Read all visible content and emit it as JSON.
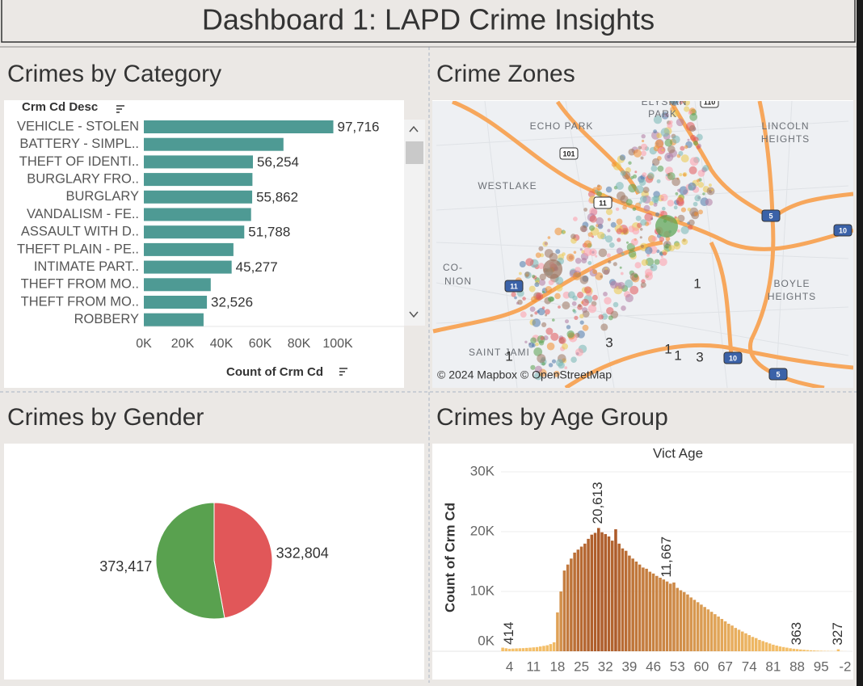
{
  "header": {
    "title": "Dashboard 1: LAPD Crime Insights"
  },
  "map": {
    "title": "Crime Zones",
    "place_labels": [
      "ELYSIAN",
      "PARK",
      "ECHO PARK",
      "WESTLAKE",
      "LINCOLN",
      "HEIGHTS",
      "BOYLE",
      "HEIGHTS",
      "SAINT JAMI",
      "CO-",
      "NION"
    ],
    "route_shields": [
      "101",
      "5",
      "10",
      "10",
      "5",
      "110",
      "11",
      "11"
    ],
    "cluster_counts": [
      1,
      3,
      1,
      1,
      3,
      1
    ],
    "attribution": "© 2024 Mapbox © OpenStreetMap"
  },
  "chart_data": [
    {
      "type": "hbar",
      "title": "Crimes by Category",
      "category_label": "Crm Cd Desc",
      "xlabel": "Count of Crm Cd",
      "categories": [
        "VEHICLE - STOLEN",
        "BATTERY - SIMPL..",
        "THEFT OF IDENTI..",
        "BURGLARY FRO..",
        "BURGLARY",
        "VANDALISM - FE..",
        "ASSAULT WITH D..",
        "THEFT PLAIN - PE..",
        "INTIMATE PART..",
        "THEFT FROM MO..",
        "THEFT FROM MO..",
        "ROBBERY"
      ],
      "values": [
        97716,
        72000,
        56254,
        56000,
        55862,
        55300,
        51788,
        46200,
        45277,
        34500,
        32526,
        30800
      ],
      "value_labels": [
        "97,716",
        null,
        "56,254",
        null,
        "55,862",
        null,
        "51,788",
        null,
        "45,277",
        null,
        "32,526",
        null
      ],
      "color": "#4e9a94",
      "xlim": [
        0,
        100000
      ],
      "xticks": [
        {
          "value": 0,
          "label": "0K"
        },
        {
          "value": 20000,
          "label": "20K"
        },
        {
          "value": 40000,
          "label": "40K"
        },
        {
          "value": 60000,
          "label": "60K"
        },
        {
          "value": 80000,
          "label": "80K"
        },
        {
          "value": 100000,
          "label": "100K"
        }
      ]
    },
    {
      "type": "pie",
      "title": "Crimes by Gender",
      "values": [
        332804,
        373417
      ],
      "value_labels": [
        "332,804",
        "373,417"
      ],
      "colors": [
        "#e15759",
        "#59a14f"
      ]
    },
    {
      "type": "column",
      "title": "Crimes by Age Group",
      "xlabel": "Vict Age",
      "ylabel": "Count of Crm Cd",
      "categories": [
        null,
        null,
        "4",
        null,
        null,
        null,
        null,
        null,
        null,
        "11",
        null,
        null,
        null,
        null,
        null,
        null,
        "18",
        null,
        null,
        null,
        null,
        null,
        null,
        "25",
        null,
        null,
        null,
        null,
        null,
        null,
        "32",
        null,
        null,
        null,
        null,
        null,
        null,
        "39",
        null,
        null,
        null,
        null,
        null,
        null,
        "46",
        null,
        null,
        null,
        null,
        null,
        null,
        "53",
        null,
        null,
        null,
        null,
        null,
        null,
        "60",
        null,
        null,
        null,
        null,
        null,
        null,
        "67",
        null,
        null,
        null,
        null,
        null,
        null,
        "74",
        null,
        null,
        null,
        null,
        null,
        null,
        "81",
        null,
        null,
        null,
        null,
        null,
        null,
        "88",
        null,
        null,
        null,
        null,
        null,
        null,
        "95",
        null,
        null,
        null,
        null,
        null,
        null,
        "-2"
      ],
      "values": [
        600,
        500,
        414,
        450,
        480,
        500,
        520,
        560,
        600,
        650,
        700,
        800,
        900,
        1000,
        1200,
        1500,
        6500,
        10000,
        13500,
        14500,
        15500,
        16500,
        17000,
        17500,
        18000,
        18800,
        19500,
        19800,
        20613,
        19900,
        19600,
        19200,
        18500,
        20400,
        18000,
        17200,
        16800,
        16000,
        15500,
        15000,
        14500,
        14000,
        13800,
        13300,
        13000,
        12600,
        12300,
        12000,
        11667,
        11300,
        11500,
        10600,
        10200,
        9900,
        9500,
        9000,
        8600,
        8200,
        7800,
        7400,
        7000,
        6600,
        6200,
        5800,
        5400,
        5000,
        4600,
        4300,
        3900,
        3600,
        3300,
        3000,
        2700,
        2400,
        2200,
        1900,
        1700,
        1500,
        1300,
        1100,
        950,
        800,
        700,
        600,
        500,
        420,
        363,
        300,
        250,
        200,
        160,
        130,
        100,
        80,
        60,
        50,
        40,
        30,
        327,
        20,
        10
      ],
      "value_labels": [
        null,
        null,
        "414",
        null,
        null,
        null,
        null,
        null,
        null,
        null,
        null,
        null,
        null,
        null,
        null,
        null,
        null,
        null,
        null,
        null,
        null,
        null,
        null,
        null,
        null,
        null,
        null,
        null,
        "20,613",
        null,
        null,
        null,
        null,
        null,
        null,
        null,
        null,
        null,
        null,
        null,
        null,
        null,
        null,
        null,
        null,
        null,
        null,
        null,
        "11,667",
        null,
        null,
        null,
        null,
        null,
        null,
        null,
        null,
        null,
        null,
        null,
        null,
        null,
        null,
        null,
        null,
        null,
        null,
        null,
        null,
        null,
        null,
        null,
        null,
        null,
        null,
        null,
        null,
        null,
        null,
        null,
        null,
        null,
        null,
        null,
        null,
        null,
        "363",
        null,
        null,
        null,
        null,
        null,
        null,
        null,
        null,
        null,
        null,
        null,
        "327",
        null,
        null
      ],
      "color_range": [
        "#f6c26a",
        "#8a2b0c"
      ],
      "ylim": [
        0,
        30000
      ],
      "yticks": [
        {
          "value": 0,
          "label": "0K"
        },
        {
          "value": 10000,
          "label": "10K"
        },
        {
          "value": 20000,
          "label": "20K"
        },
        {
          "value": 30000,
          "label": "30K"
        }
      ],
      "grid": true
    }
  ]
}
